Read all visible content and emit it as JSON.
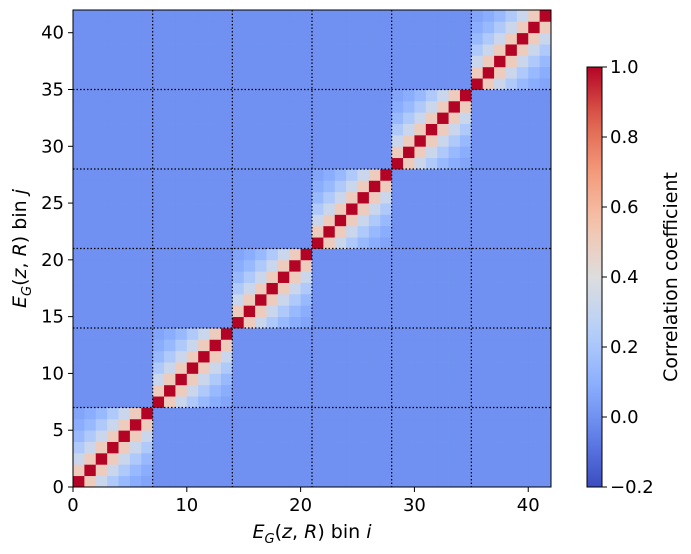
{
  "chart_data": {
    "type": "heatmap",
    "x_label": "E_G(z, R) bin i",
    "y_label": "E_G(z, R) bin j",
    "xlim": [
      0,
      42
    ],
    "ylim": [
      0,
      42
    ],
    "x_ticks": [
      "0",
      "10",
      "20",
      "30",
      "40"
    ],
    "y_ticks": [
      "0",
      "5",
      "10",
      "15",
      "20",
      "25",
      "30",
      "35",
      "40"
    ],
    "n_bins": 42,
    "block_size": 7,
    "block_boundaries": [
      7,
      14,
      21,
      28,
      35
    ],
    "colorbar": {
      "label": "Correlation coefficient",
      "min": -0.2,
      "max": 1.0,
      "ticks": [
        "−0.2",
        "0.0",
        "0.2",
        "0.4",
        "0.6",
        "0.8",
        "1.0"
      ]
    },
    "background_value": 0.0,
    "offdiag_within_block": [
      1.0,
      0.5,
      0.32,
      0.22,
      0.14,
      0.09,
      0.06
    ],
    "colormap": "coolwarm"
  }
}
